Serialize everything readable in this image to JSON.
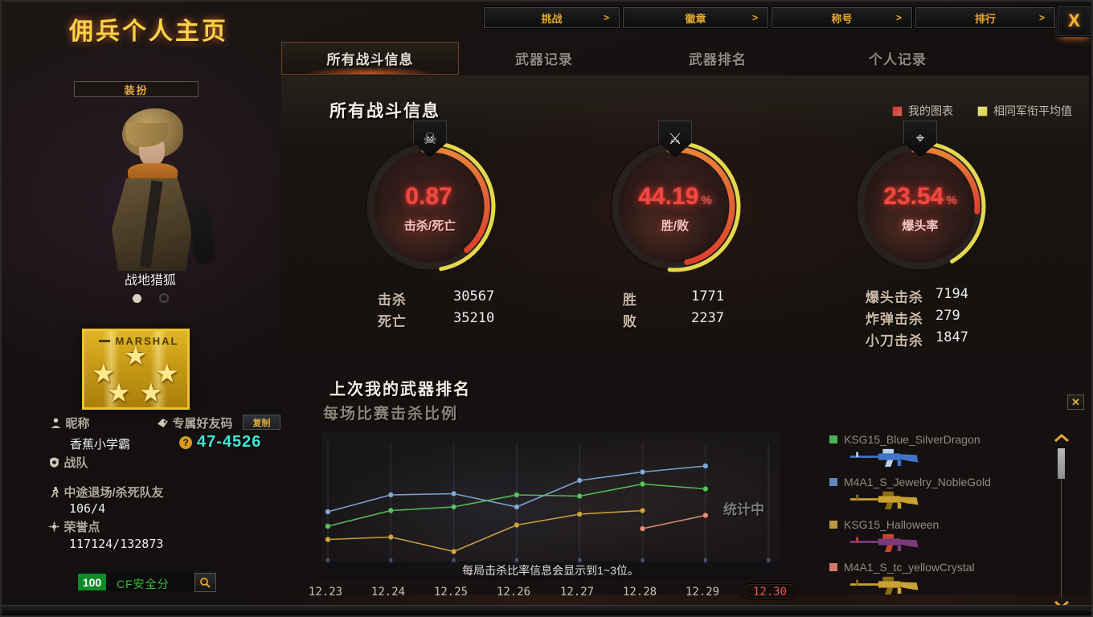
{
  "window": {
    "title": "佣兵个人主页",
    "close_label": "X"
  },
  "top_nav": [
    {
      "label": "挑战",
      "arrow": ">"
    },
    {
      "label": "徽章",
      "arrow": ">"
    },
    {
      "label": "称号",
      "arrow": ">"
    },
    {
      "label": "排行",
      "arrow": ">"
    }
  ],
  "tabs": [
    {
      "label": "所有战斗信息",
      "active": true
    },
    {
      "label": "武器记录",
      "active": false
    },
    {
      "label": "武器排名",
      "active": false
    },
    {
      "label": "个人记录",
      "active": false
    }
  ],
  "sidebar": {
    "dress_button": "装扮",
    "character_name": "战地猎狐",
    "rank_badge_text": "MARSHAL",
    "nickname_label": "昵称",
    "nickname_value": "香蕉小学霸",
    "friend_code_label": "专属好友码",
    "copy_button": "复制",
    "friend_code_help": "?",
    "friend_code_value": "47-4526",
    "clan_label": "战队",
    "quit_label": "中途退场/杀死队友",
    "quit_value": "106/4",
    "honor_label": "荣誉点",
    "honor_value": "117124/132873",
    "security_score": "100",
    "security_label": "CF安全分"
  },
  "main": {
    "section_title": "所有战斗信息",
    "legend": [
      {
        "label": "我的图表",
        "color": "#c23434"
      },
      {
        "label": "相同军衔平均值",
        "color": "#d6ce58"
      }
    ],
    "gauges": [
      {
        "icon": "skull-icon",
        "glyph": "☠",
        "value": "0.87",
        "unit": "",
        "label": "击杀/死亡",
        "my_deg": 140,
        "avg_deg": 170
      },
      {
        "icon": "crossed-rifles-icon",
        "glyph": "⚔",
        "value": "44.19",
        "unit": "%",
        "label": "胜/败",
        "my_deg": 168,
        "avg_deg": 185
      },
      {
        "icon": "sniper-scope-icon",
        "glyph": "⌖",
        "value": "23.54",
        "unit": "%",
        "label": "爆头率",
        "my_deg": 95,
        "avg_deg": 150
      }
    ],
    "stat_groups": [
      [
        {
          "label": "击杀",
          "value": "30567"
        },
        {
          "label": "死亡",
          "value": "35210"
        }
      ],
      [
        {
          "label": "胜",
          "value": "1771"
        },
        {
          "label": "败",
          "value": "2237"
        }
      ],
      [
        {
          "label": "爆头击杀",
          "value": "7194"
        },
        {
          "label": "炸弹击杀",
          "value": "279"
        },
        {
          "label": "小刀击杀",
          "value": "1847"
        }
      ]
    ],
    "weapon_section": {
      "title": "上次我的武器排名",
      "subtitle": "每场比赛击杀比例",
      "status": "统计中",
      "note": "每局击杀比率信息会显示到1~3位。"
    }
  },
  "weapons": [
    {
      "name": "KSG15_Blue_SilverDragon",
      "swatch": "#4db052",
      "body": "#3f74c9",
      "accent": "#b9cfe8"
    },
    {
      "name": "M4A1_S_Jewelry_NobleGold",
      "swatch": "#6286bd",
      "body": "#c9a231",
      "accent": "#8a6c14"
    },
    {
      "name": "KSG15_Halloween",
      "swatch": "#b9993d",
      "body": "#7c3a7c",
      "accent": "#c94434"
    },
    {
      "name": "M4A1_S_tc_yellowCrystal",
      "swatch": "#d4796a",
      "body": "#c9a231",
      "accent": "#8a6c14"
    }
  ],
  "chart_data": {
    "type": "line",
    "title": "每场比赛击杀比例",
    "x": [
      "12.23",
      "12.24",
      "12.25",
      "12.26",
      "12.27",
      "12.28",
      "12.29",
      "12.30"
    ],
    "highlight_x": "12.30",
    "ylim": [
      0,
      10
    ],
    "grid": "vertical",
    "legend_position": "right-list",
    "series": [
      {
        "name": "M4A1_S_Jewelry_NobleGold",
        "color": "#7fa9d9",
        "values": [
          4.0,
          5.4,
          5.5,
          4.4,
          6.6,
          7.3,
          7.8,
          null
        ]
      },
      {
        "name": "KSG15_Blue_SilverDragon",
        "color": "#5cc35c",
        "values": [
          2.8,
          4.1,
          4.4,
          5.4,
          5.3,
          6.3,
          5.9,
          null
        ]
      },
      {
        "name": "KSG15_Halloween",
        "color": "#d2a53e",
        "values": [
          1.7,
          1.9,
          0.7,
          2.9,
          3.8,
          4.1,
          null,
          null
        ]
      },
      {
        "name": "M4A1_S_tc_yellowCrystal",
        "color": "#e69079",
        "values": [
          null,
          null,
          null,
          null,
          null,
          2.6,
          3.7,
          null
        ]
      }
    ]
  }
}
